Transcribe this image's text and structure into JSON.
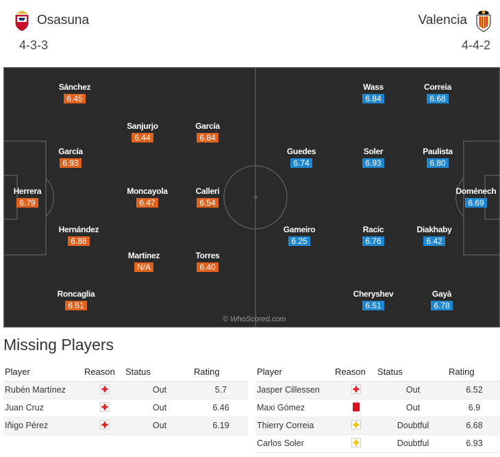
{
  "home": {
    "name": "Osasuna",
    "formation": "4-3-3",
    "crest_icon": "osasuna-crest",
    "players": [
      {
        "name": "Sánchez",
        "rating": "6.45"
      },
      {
        "name": "Sanjurjo",
        "rating": "6.44"
      },
      {
        "name": "García",
        "rating": "6.84"
      },
      {
        "name": "García",
        "rating": "6.93"
      },
      {
        "name": "Herrera",
        "rating": "6.79"
      },
      {
        "name": "Moncayola",
        "rating": "6.47"
      },
      {
        "name": "Calleri",
        "rating": "6.54"
      },
      {
        "name": "Hernández",
        "rating": "6.86"
      },
      {
        "name": "Martinez",
        "rating": "N/A"
      },
      {
        "name": "Torres",
        "rating": "6.40"
      },
      {
        "name": "Roncaglia",
        "rating": "6.51"
      }
    ]
  },
  "away": {
    "name": "Valencia",
    "formation": "4-4-2",
    "crest_icon": "valencia-crest",
    "players": [
      {
        "name": "Wass",
        "rating": "6.84"
      },
      {
        "name": "Correia",
        "rating": "6.68"
      },
      {
        "name": "Guedes",
        "rating": "6.74"
      },
      {
        "name": "Soler",
        "rating": "6.93"
      },
      {
        "name": "Paulista",
        "rating": "6.80"
      },
      {
        "name": "Doménech",
        "rating": "6.69"
      },
      {
        "name": "Gameiro",
        "rating": "6.25"
      },
      {
        "name": "Racic",
        "rating": "6.76"
      },
      {
        "name": "Diakhaby",
        "rating": "6.42"
      },
      {
        "name": "Cheryshev",
        "rating": "6.51"
      },
      {
        "name": "Gayà",
        "rating": "6.78"
      }
    ]
  },
  "colors": {
    "home_rating": "#e0621f",
    "away_rating": "#1f87cf",
    "pitch": "#2a2a2a",
    "rating_text": "#d5552a"
  },
  "watermark": "© WhoScored.com",
  "missing": {
    "title": "Missing Players",
    "headers": {
      "player": "Player",
      "reason": "Reason",
      "status": "Status",
      "rating": "Rating"
    },
    "home": [
      {
        "player": "Rubén Martínez",
        "reason_icon": "injury-cross-icon",
        "status": "Out",
        "rating": "5.7"
      },
      {
        "player": "Juan Cruz",
        "reason_icon": "injury-cross-icon",
        "status": "Out",
        "rating": "6.46"
      },
      {
        "player": "Iñigo Pérez",
        "reason_icon": "injury-cross-icon",
        "status": "Out",
        "rating": "6.19"
      }
    ],
    "away": [
      {
        "player": "Jasper Cillessen",
        "reason_icon": "injury-cross-icon",
        "status": "Out",
        "rating": "6.52"
      },
      {
        "player": "Maxi Gómez",
        "reason_icon": "red-card-icon",
        "status": "Out",
        "rating": "6.9"
      },
      {
        "player": "Thierry Correia",
        "reason_icon": "doubtful-injury-icon",
        "status": "Doubtful",
        "rating": "6.68"
      },
      {
        "player": "Carlos Soler",
        "reason_icon": "doubtful-injury-icon",
        "status": "Doubtful",
        "rating": "6.93"
      }
    ]
  }
}
